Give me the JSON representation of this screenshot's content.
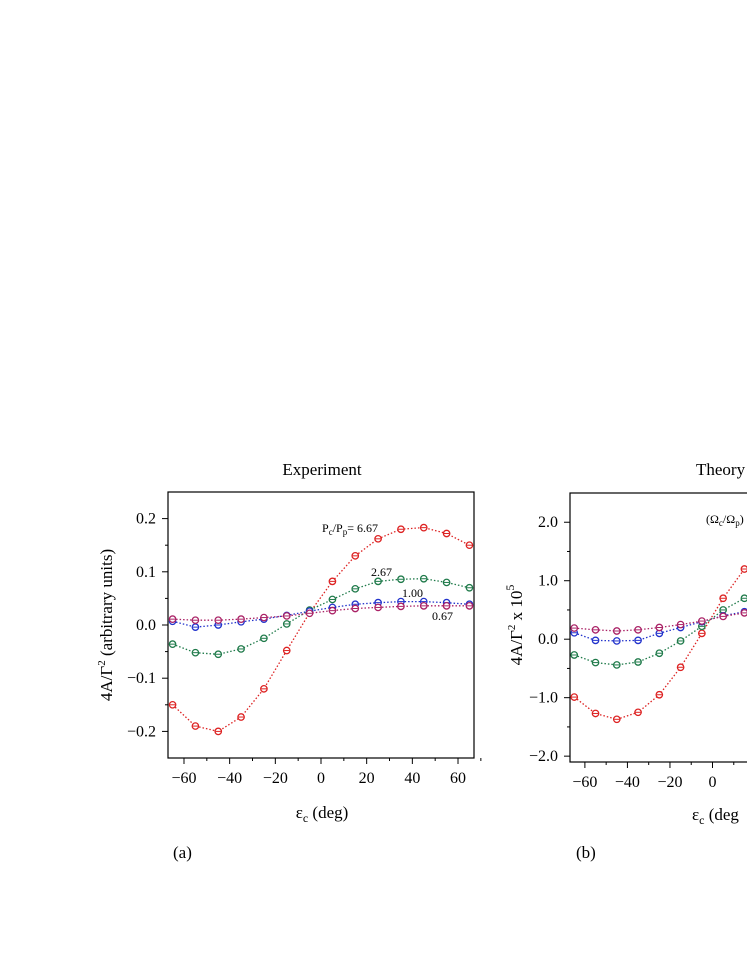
{
  "chart_data": [
    {
      "type": "line",
      "panel_label": "(a)",
      "title": "Experiment",
      "xlabel": "ε",
      "xlabel_sub": "c",
      "xlabel_unit": " (deg)",
      "ylabel": "4A/Γ",
      "ylabel_sup": "2",
      "ylabel_suffix": " (arbitrary units)",
      "xlim": [
        -67,
        67
      ],
      "ylim": [
        -0.25,
        0.25
      ],
      "xticks": [
        -60,
        -40,
        -20,
        0,
        20,
        40,
        60
      ],
      "xtick_labels": [
        "−60",
        "−40",
        "−20",
        "0",
        "20",
        "40",
        "60"
      ],
      "yticks": [
        -0.2,
        -0.1,
        0.0,
        0.1,
        0.2
      ],
      "ytick_labels": [
        "−0.2",
        "−0.1",
        "0.0",
        "0.1",
        "0.2"
      ],
      "x": [
        -65,
        -55,
        -45,
        -35,
        -25,
        -15,
        -5,
        5,
        15,
        25,
        35,
        45,
        55,
        65
      ],
      "series": [
        {
          "name": "6.67",
          "color": "#dd2222",
          "values": [
            -0.15,
            -0.19,
            -0.2,
            -0.173,
            -0.12,
            -0.048,
            0.023,
            0.082,
            0.13,
            0.162,
            0.18,
            0.183,
            0.172,
            0.15
          ]
        },
        {
          "name": "2.67",
          "color": "#1f7a4a",
          "values": [
            -0.036,
            -0.052,
            -0.055,
            -0.045,
            -0.025,
            0.002,
            0.028,
            0.048,
            0.068,
            0.082,
            0.086,
            0.087,
            0.08,
            0.07
          ]
        },
        {
          "name": "1.00",
          "color": "#2233cc",
          "values": [
            0.007,
            -0.004,
            0.0,
            0.006,
            0.011,
            0.018,
            0.026,
            0.033,
            0.039,
            0.042,
            0.044,
            0.044,
            0.042,
            0.039
          ]
        },
        {
          "name": "0.67",
          "color": "#aa2266",
          "values": [
            0.011,
            0.009,
            0.009,
            0.011,
            0.014,
            0.017,
            0.022,
            0.027,
            0.031,
            0.033,
            0.035,
            0.036,
            0.036,
            0.036
          ]
        }
      ],
      "annotations": [
        {
          "text": "P",
          "sub": "c",
          "mid": "/P",
          "sub2": "p",
          "tail": "= 6.67",
          "series": "6.67"
        },
        {
          "text": "2.67",
          "series": "2.67"
        },
        {
          "text": "1.00",
          "series": "1.00"
        },
        {
          "text": "0.67",
          "series": "0.67"
        }
      ]
    },
    {
      "type": "line",
      "panel_label": "(b)",
      "title": "Theory",
      "xlabel": "ε",
      "xlabel_sub": "c",
      "xlabel_unit": " (deg",
      "ylabel": "4A/Γ",
      "ylabel_sup": "2",
      "ylabel_suffix": "  x  10",
      "ylabel_exp": "5",
      "xlim": [
        -67,
        67
      ],
      "ylim": [
        -2.1,
        2.5
      ],
      "xticks": [
        -60,
        -40,
        -20,
        0
      ],
      "xtick_labels": [
        "−60",
        "−40",
        "−20",
        "0"
      ],
      "yticks": [
        -2.0,
        -1.0,
        0.0,
        1.0,
        2.0
      ],
      "ytick_labels": [
        "−2.0",
        "−1.0",
        "0.0",
        "1.0",
        "2.0"
      ],
      "x": [
        -65,
        -55,
        -45,
        -35,
        -25,
        -15,
        -5,
        5,
        15
      ],
      "series": [
        {
          "name": "red",
          "color": "#dd2222",
          "values": [
            -0.99,
            -1.27,
            -1.37,
            -1.25,
            -0.95,
            -0.48,
            0.1,
            0.7,
            1.2
          ]
        },
        {
          "name": "green",
          "color": "#1f7a4a",
          "values": [
            -0.27,
            -0.4,
            -0.44,
            -0.39,
            -0.24,
            -0.03,
            0.22,
            0.5,
            0.7
          ]
        },
        {
          "name": "blue",
          "color": "#2233cc",
          "values": [
            0.11,
            -0.02,
            -0.03,
            -0.02,
            0.1,
            0.2,
            0.3,
            0.4,
            0.47
          ]
        },
        {
          "name": "magenta",
          "color": "#aa2266",
          "values": [
            0.19,
            0.16,
            0.14,
            0.16,
            0.2,
            0.25,
            0.31,
            0.39,
            0.45
          ]
        }
      ],
      "annotations": [
        {
          "text": "(Ω",
          "sub": "c",
          "mid": "/Ω",
          "sub2": "p",
          "tail": ")"
        }
      ]
    }
  ]
}
